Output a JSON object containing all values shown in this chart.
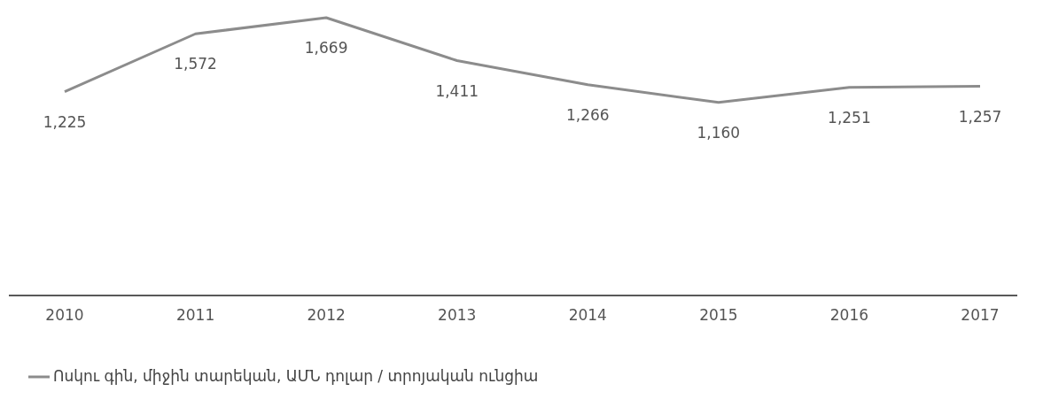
{
  "chart_data": {
    "type": "line",
    "categories": [
      "2010",
      "2011",
      "2012",
      "2013",
      "2014",
      "2015",
      "2016",
      "2017"
    ],
    "series": [
      {
        "name": "Ոսկու գին, միջին տարեկան, ԱՄՆ դոլար / տրոյական ունցիա",
        "color": "#8c8c8c",
        "values": [
          1225,
          1572,
          1669,
          1411,
          1266,
          1160,
          1251,
          1257
        ],
        "value_labels": [
          "1,225",
          "1,572",
          "1,669",
          "1,411",
          "1,266",
          "1,160",
          "1,251",
          "1,257"
        ]
      }
    ],
    "legend": "bottom left",
    "marker": "none",
    "line_style": "solid",
    "tick_labels": "x"
  }
}
